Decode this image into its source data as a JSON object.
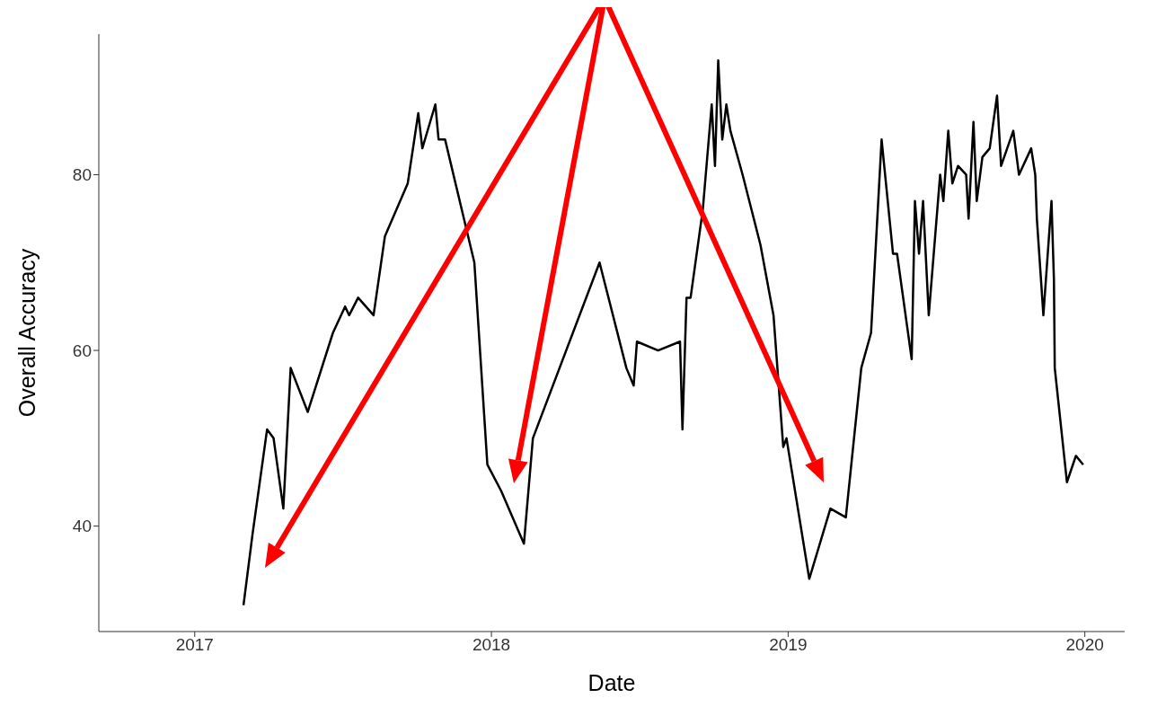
{
  "chart_data": {
    "type": "line",
    "xlabel": "Date",
    "ylabel": "Overall Accuracy",
    "x": [
      "2017-03-02",
      "2017-03-13",
      "2017-03-31",
      "2017-04-08",
      "2017-04-20",
      "2017-04-29",
      "2017-05-20",
      "2017-06-20",
      "2017-07-05",
      "2017-07-10",
      "2017-07-21",
      "2017-08-09",
      "2017-08-23",
      "2017-09-20",
      "2017-10-03",
      "2017-10-08",
      "2017-10-24",
      "2017-10-28",
      "2017-11-05",
      "2017-12-11",
      "2017-12-27",
      "2018-01-13",
      "2018-02-10",
      "2018-02-21",
      "2018-05-14",
      "2018-06-16",
      "2018-06-25",
      "2018-06-29",
      "2018-07-25",
      "2018-08-21",
      "2018-08-24",
      "2018-08-29",
      "2018-09-03",
      "2018-09-18",
      "2018-09-29",
      "2018-10-03",
      "2018-10-07",
      "2018-10-12",
      "2018-10-17",
      "2018-10-22",
      "2018-11-06",
      "2018-11-28",
      "2018-12-14",
      "2018-12-26",
      "2018-12-30",
      "2019-01-27",
      "2019-02-22",
      "2019-03-13",
      "2019-04-01",
      "2019-04-13",
      "2019-04-26",
      "2019-05-10",
      "2019-05-15",
      "2019-06-02",
      "2019-06-06",
      "2019-06-11",
      "2019-06-16",
      "2019-06-23",
      "2019-07-07",
      "2019-07-11",
      "2019-07-17",
      "2019-07-22",
      "2019-07-29",
      "2019-08-08",
      "2019-08-11",
      "2019-08-17",
      "2019-08-21",
      "2019-08-28",
      "2019-09-06",
      "2019-09-15",
      "2019-09-20",
      "2019-10-05",
      "2019-10-12",
      "2019-10-27",
      "2019-11-01",
      "2019-11-03",
      "2019-11-11",
      "2019-11-21",
      "2019-11-24",
      "2019-11-25",
      "2019-12-10",
      "2019-12-21",
      "2019-12-30"
    ],
    "series": [
      {
        "color": "#000000",
        "values": [
          31,
          39,
          51,
          50,
          42,
          58,
          53,
          62,
          65,
          64,
          66,
          64,
          73,
          79,
          87,
          83,
          88,
          84,
          84,
          70,
          47,
          44,
          38,
          50,
          70,
          58,
          56,
          61,
          60,
          61,
          51,
          66,
          66,
          76,
          88,
          81,
          93,
          84,
          88,
          85,
          80,
          72,
          64,
          49,
          50,
          34,
          42,
          41,
          58,
          62,
          84,
          71,
          71,
          59,
          77,
          71,
          77,
          64,
          80,
          77,
          85,
          79,
          81,
          80,
          75,
          86,
          77,
          82,
          83,
          89,
          81,
          85,
          80,
          83,
          80,
          75,
          64,
          77,
          68,
          58,
          45,
          48,
          47
        ]
      }
    ],
    "xlim": [
      "2016-09-05",
      "2020-02-19"
    ],
    "xticks": [
      {
        "value": "2017-01-01",
        "label": "2017"
      },
      {
        "value": "2018-01-01",
        "label": "2018"
      },
      {
        "value": "2019-01-01",
        "label": "2019"
      },
      {
        "value": "2020-01-01",
        "label": "2020"
      }
    ],
    "ylim": [
      28,
      96
    ],
    "yticks": [
      40,
      60,
      80
    ]
  }
}
